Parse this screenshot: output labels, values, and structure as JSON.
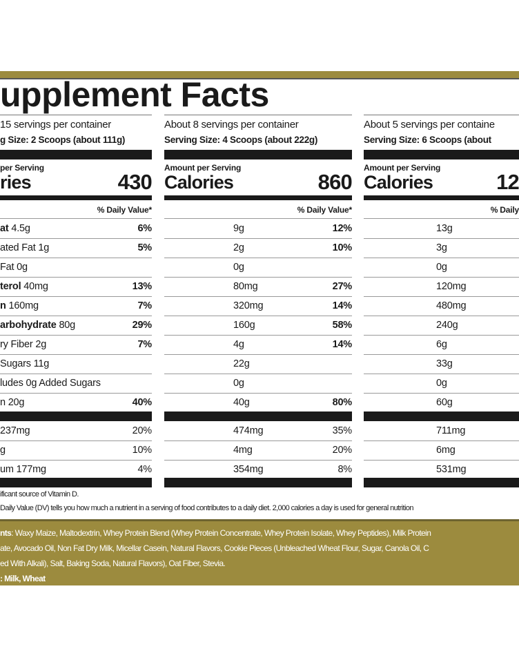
{
  "title": "upplement Facts",
  "colors": {
    "gold": "#9c8b3e",
    "ink": "#1a1a1a"
  },
  "columns": [
    {
      "servings": "15 servings per container",
      "size": "g Size:  2 Scoops (about 111g)",
      "amount_label": "per Serving",
      "calories_label": "ries",
      "calories": "430",
      "dv_header": "% Daily Value*",
      "rows": [
        {
          "bold": "at",
          "text": " 4.5g",
          "pct": "6%"
        },
        {
          "bold": "",
          "text": "ated Fat 1g",
          "pct": "5%"
        },
        {
          "bold": "",
          "text": " Fat 0g",
          "pct": ""
        },
        {
          "bold": "terol",
          "text": " 40mg",
          "pct": "13%"
        },
        {
          "bold": "n",
          "text": " 160mg",
          "pct": "7%"
        },
        {
          "bold": "arbohydrate",
          "text": " 80g",
          "pct": "29%"
        },
        {
          "bold": "",
          "text": "ry Fiber 2g",
          "pct": "7%"
        },
        {
          "bold": "",
          "text": " Sugars 11g",
          "pct": ""
        },
        {
          "bold": "",
          "text": "ludes 0g Added Sugars",
          "pct": ""
        },
        {
          "bold": "",
          "text": "n 20g",
          "pct": "40%"
        }
      ],
      "minerals": [
        {
          "text": " 237mg",
          "pct": "20%"
        },
        {
          "text": "g",
          "pct": "10%"
        },
        {
          "text": "um 177mg",
          "pct": "4%"
        }
      ]
    },
    {
      "servings": "About 8 servings per container",
      "size": "Serving Size: 4 Scoops (about 222g)",
      "amount_label": "Amount per Serving",
      "calories_label": "Calories",
      "calories": "860",
      "dv_header": "% Daily Value*",
      "rows": [
        {
          "value": "9g",
          "pct": "12%"
        },
        {
          "value": "2g",
          "pct": "10%"
        },
        {
          "value": "0g",
          "pct": ""
        },
        {
          "value": "80mg",
          "pct": "27%"
        },
        {
          "value": "320mg",
          "pct": "14%"
        },
        {
          "value": "160g",
          "pct": "58%"
        },
        {
          "value": "4g",
          "pct": "14%"
        },
        {
          "value": "22g",
          "pct": ""
        },
        {
          "value": "0g",
          "pct": ""
        },
        {
          "value": "40g",
          "pct": "80%"
        }
      ],
      "minerals": [
        {
          "value": "474mg",
          "pct": "35%"
        },
        {
          "value": "4mg",
          "pct": "20%"
        },
        {
          "value": "354mg",
          "pct": "8%"
        }
      ]
    },
    {
      "servings": "About 5 servings per containe",
      "size": "Serving Size: 6 Scoops (about",
      "amount_label": "Amount per Serving",
      "calories_label": "Calories",
      "calories": "12",
      "dv_header": "% Daily",
      "rows": [
        {
          "value": "13g",
          "pct": ""
        },
        {
          "value": "3g",
          "pct": ""
        },
        {
          "value": "0g",
          "pct": ""
        },
        {
          "value": "120mg",
          "pct": ""
        },
        {
          "value": "480mg",
          "pct": ""
        },
        {
          "value": "240g",
          "pct": ""
        },
        {
          "value": "6g",
          "pct": ""
        },
        {
          "value": "33g",
          "pct": ""
        },
        {
          "value": "0g",
          "pct": ""
        },
        {
          "value": "60g",
          "pct": ""
        }
      ],
      "minerals": [
        {
          "value": "711mg",
          "pct": ""
        },
        {
          "value": "6mg",
          "pct": ""
        },
        {
          "value": "531mg",
          "pct": ""
        }
      ]
    }
  ],
  "footnotes": {
    "vitamin_d": "ificant source of Vitamin D.",
    "dv_note": "Daily Value (DV) tells you how much a nutrient in a serving of food contributes to a daily diet. 2,000 calories a day is used for general nutrition"
  },
  "ingredients": {
    "label": "nts",
    "line1": ": Waxy Maize, Maltodextrin, Whey Protein Blend (Whey Protein Concentrate, Whey Protein Isolate, Whey Peptides), Milk Protein",
    "line2": "ate, Avocado Oil, Non Fat Dry Milk, Micellar Casein, Natural Flavors, Cookie Pieces (Unbleached Wheat Flour, Sugar, Canola Oil, C",
    "line3": "ed With Alkali), Salt, Baking Soda, Natural Flavors), Oat Fiber, Stevia.",
    "contains": ": Milk, Wheat"
  }
}
